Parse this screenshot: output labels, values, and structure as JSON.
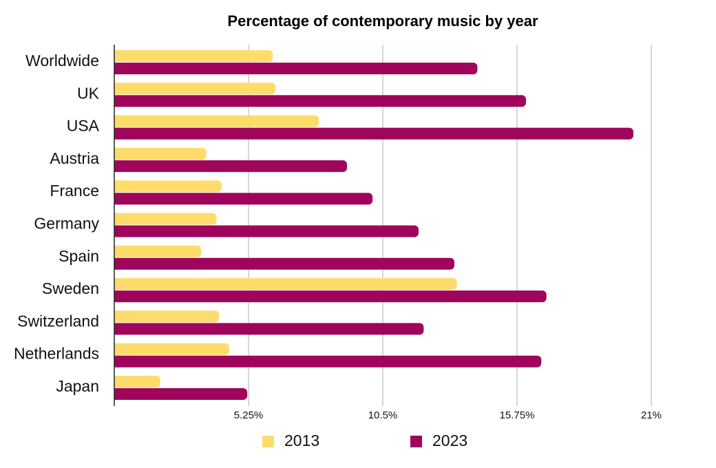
{
  "chart_data": {
    "type": "bar",
    "orientation": "horizontal",
    "title": "Percentage of contemporary music by year",
    "xlabel": "",
    "ylabel": "",
    "categories": [
      "Worldwide",
      "UK",
      "USA",
      "Austria",
      "France",
      "Germany",
      "Spain",
      "Sweden",
      "Switzerland",
      "Netherlands",
      "Japan"
    ],
    "series": [
      {
        "name": "2013",
        "color": "#fddc6b",
        "values": [
          6.2,
          6.3,
          8.0,
          3.6,
          4.2,
          4.0,
          3.4,
          13.4,
          4.1,
          4.5,
          1.8
        ]
      },
      {
        "name": "2023",
        "color": "#a0055c",
        "values": [
          14.2,
          16.1,
          20.3,
          9.1,
          10.1,
          11.9,
          13.3,
          16.9,
          12.1,
          16.7,
          5.2
        ]
      }
    ],
    "xticks": [
      5.25,
      10.5,
      15.75,
      21
    ],
    "xtick_labels": [
      "5.25%",
      "10.5%",
      "15.75%",
      "21%"
    ],
    "xlim": [
      0,
      21
    ],
    "grid": true,
    "legend_position": "bottom"
  }
}
